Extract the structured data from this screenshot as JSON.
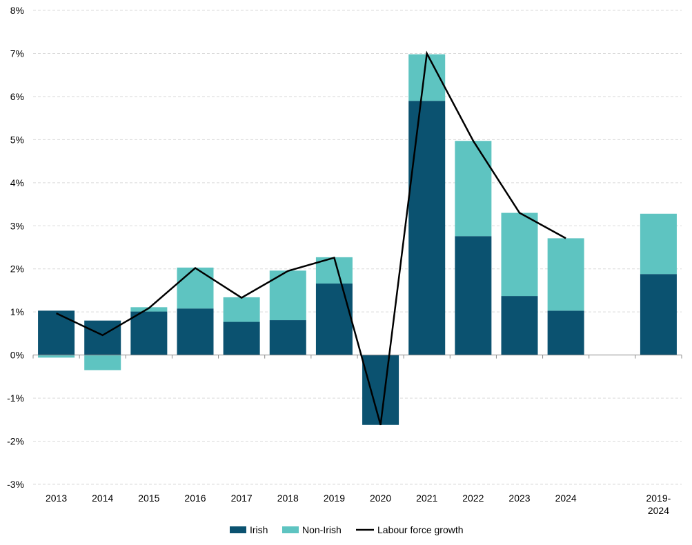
{
  "chart_data": {
    "type": "bar",
    "stacked": true,
    "title": "",
    "xlabel": "",
    "ylabel": "",
    "ylim": [
      -3,
      8
    ],
    "yticks": [
      "8%",
      "7%",
      "6%",
      "5%",
      "4%",
      "3%",
      "2%",
      "1%",
      "0%",
      "-1%",
      "-2%",
      "-3%"
    ],
    "ytick_values": [
      8,
      7,
      6,
      5,
      4,
      3,
      2,
      1,
      0,
      -1,
      -2,
      -3
    ],
    "categories": [
      "2013",
      "2014",
      "2015",
      "2016",
      "2017",
      "2018",
      "2019",
      "2020",
      "2021",
      "2022",
      "2023",
      "2024",
      "",
      "2019-\n2024"
    ],
    "category_lines": [
      [
        "2013"
      ],
      [
        "2014"
      ],
      [
        "2015"
      ],
      [
        "2016"
      ],
      [
        "2017"
      ],
      [
        "2018"
      ],
      [
        "2019"
      ],
      [
        "2020"
      ],
      [
        "2021"
      ],
      [
        "2022"
      ],
      [
        "2023"
      ],
      [
        "2024"
      ],
      [],
      [
        "2019-",
        "2024"
      ]
    ],
    "series": [
      {
        "name": "Irish",
        "kind": "bar",
        "color": "#0b5270",
        "values": [
          1.03,
          0.8,
          1.01,
          1.08,
          0.77,
          0.81,
          1.66,
          -1.62,
          5.9,
          2.76,
          1.37,
          1.03,
          null,
          1.88
        ]
      },
      {
        "name": "Non-Irish",
        "kind": "bar",
        "color": "#5ec4c1",
        "values": [
          -0.06,
          -0.35,
          0.1,
          0.95,
          0.57,
          1.15,
          0.61,
          0.0,
          1.08,
          2.21,
          1.93,
          1.68,
          null,
          1.4
        ]
      },
      {
        "name": "Labour force growth",
        "kind": "line",
        "color": "#000000",
        "values": [
          0.97,
          0.46,
          1.09,
          2.02,
          1.33,
          1.95,
          2.26,
          -1.62,
          7.0,
          4.97,
          3.3,
          2.71,
          null,
          null
        ]
      }
    ],
    "grid": true,
    "legend": {
      "position": "bottom-center",
      "entries": [
        "Irish",
        "Non-Irish",
        "Labour force growth"
      ]
    }
  }
}
